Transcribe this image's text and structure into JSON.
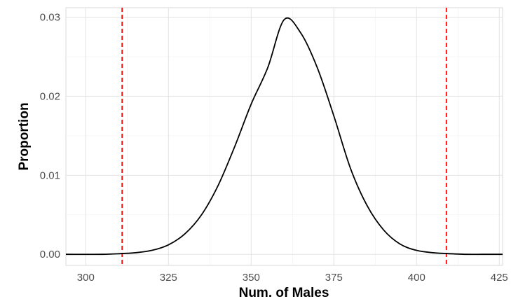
{
  "chart_data": {
    "type": "line",
    "xlabel": "Num. of Males",
    "ylabel": "Proportion",
    "xlim": [
      294,
      426
    ],
    "ylim": [
      -0.0014,
      0.0312
    ],
    "x_ticks": [
      300,
      325,
      350,
      375,
      400,
      425
    ],
    "y_ticks": [
      0.0,
      0.01,
      0.02,
      0.03
    ],
    "x_tick_labels": [
      "300",
      "325",
      "350",
      "375",
      "400",
      "425"
    ],
    "y_tick_labels": [
      "0.00",
      "0.01",
      "0.02",
      "0.03"
    ],
    "grid": true,
    "series": [
      {
        "color": "#000000",
        "x": [
          294,
          305,
          311,
          315,
          320,
          325,
          330,
          335,
          340,
          345,
          350,
          355,
          360,
          365,
          370,
          375,
          380,
          385,
          390,
          395,
          400,
          405,
          409,
          415,
          420,
          426
        ],
        "y": [
          0.0,
          0.0,
          0.0001,
          0.0002,
          0.0005,
          0.0012,
          0.0026,
          0.005,
          0.0087,
          0.0136,
          0.019,
          0.0236,
          0.0297,
          0.028,
          0.0236,
          0.0175,
          0.0109,
          0.0062,
          0.0031,
          0.0013,
          0.0005,
          0.0002,
          0.0001,
          0.0,
          0.0,
          0.0
        ]
      }
    ],
    "reference_lines": [
      {
        "axis": "x",
        "value": 311,
        "color": "#ff0000",
        "style": "dashed"
      },
      {
        "axis": "x",
        "value": 409,
        "color": "#ff0000",
        "style": "dashed"
      }
    ]
  }
}
